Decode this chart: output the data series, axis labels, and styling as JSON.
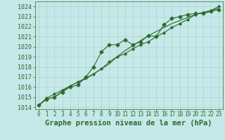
{
  "title": "Graphe pression niveau de la mer (hPa)",
  "xlabel_hours": [
    0,
    1,
    2,
    3,
    4,
    5,
    6,
    7,
    8,
    9,
    10,
    11,
    12,
    13,
    14,
    15,
    16,
    17,
    18,
    19,
    20,
    21,
    22,
    23
  ],
  "ylim": [
    1013.8,
    1024.5
  ],
  "yticks": [
    1014,
    1015,
    1016,
    1017,
    1018,
    1019,
    1020,
    1021,
    1022,
    1023,
    1024
  ],
  "line1": [
    1014.2,
    1014.8,
    1015.0,
    1015.5,
    1016.0,
    1016.2,
    1017.0,
    1018.0,
    1019.5,
    1020.2,
    1020.2,
    1020.7,
    1020.2,
    1020.5,
    1021.1,
    1021.0,
    1022.2,
    1022.8,
    1023.0,
    1023.2,
    1023.3,
    1023.3,
    1023.5,
    1023.7
  ],
  "line2": [
    1014.2,
    1014.8,
    1015.0,
    1015.6,
    1016.1,
    1016.5,
    1016.8,
    1017.3,
    1017.8,
    1018.3,
    1019.0,
    1019.6,
    1020.1,
    1020.6,
    1021.1,
    1021.5,
    1021.9,
    1022.3,
    1022.6,
    1022.9,
    1023.2,
    1023.4,
    1023.6,
    1023.8
  ],
  "line3": [
    1014.2,
    1014.9,
    1015.3,
    1015.7,
    1016.1,
    1016.5,
    1016.9,
    1017.3,
    1017.8,
    1018.5,
    1019.0,
    1019.3,
    1019.8,
    1020.2,
    1020.5,
    1021.0,
    1021.4,
    1021.9,
    1022.3,
    1022.7,
    1023.2,
    1023.4,
    1023.6,
    1024.0
  ],
  "line_color": "#2d6a2d",
  "bg_color": "#c5e8e8",
  "grid_color": "#b0cccc",
  "text_color": "#2d6a2d",
  "marker_size": 2.5,
  "linewidth": 0.8,
  "tick_fontsize": 5.5,
  "title_fontsize": 7.5,
  "ytick_fontsize": 6.0
}
